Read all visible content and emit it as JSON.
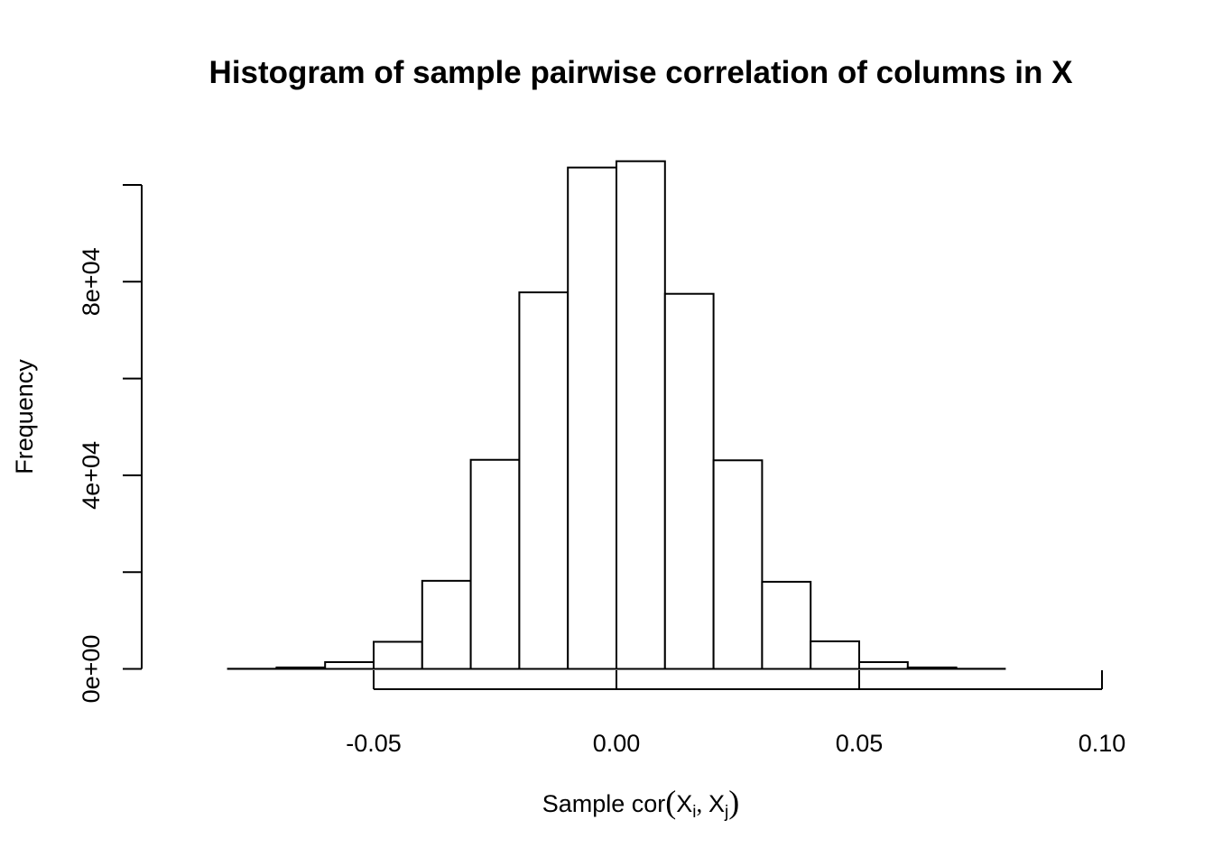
{
  "chart_data": {
    "type": "bar",
    "title": "Histogram of sample pairwise correlation of columns in X",
    "xlabel": {
      "prefix": "Sample cor",
      "var1": "X",
      "sub1": "i",
      "var2": "X",
      "sub2": "j"
    },
    "ylabel": "Frequency",
    "bin_width": 0.01,
    "bins": [
      {
        "start": -0.09,
        "end": -0.08,
        "count": 0
      },
      {
        "start": -0.08,
        "end": -0.07,
        "count": 30
      },
      {
        "start": -0.07,
        "end": -0.06,
        "count": 300
      },
      {
        "start": -0.06,
        "end": -0.05,
        "count": 1400
      },
      {
        "start": -0.05,
        "end": -0.04,
        "count": 5600
      },
      {
        "start": -0.04,
        "end": -0.03,
        "count": 18200
      },
      {
        "start": -0.03,
        "end": -0.02,
        "count": 43200
      },
      {
        "start": -0.02,
        "end": -0.01,
        "count": 77800
      },
      {
        "start": -0.01,
        "end": 0.0,
        "count": 103600
      },
      {
        "start": 0.0,
        "end": 0.01,
        "count": 104900
      },
      {
        "start": 0.01,
        "end": 0.02,
        "count": 77500
      },
      {
        "start": 0.02,
        "end": 0.03,
        "count": 43100
      },
      {
        "start": 0.03,
        "end": 0.04,
        "count": 18000
      },
      {
        "start": 0.04,
        "end": 0.05,
        "count": 5700
      },
      {
        "start": 0.05,
        "end": 0.06,
        "count": 1400
      },
      {
        "start": 0.06,
        "end": 0.07,
        "count": 300
      },
      {
        "start": 0.07,
        "end": 0.08,
        "count": 30
      },
      {
        "start": 0.08,
        "end": 0.09,
        "count": 0
      },
      {
        "start": 0.09,
        "end": 0.1,
        "count": 0
      }
    ],
    "xlim": [
      -0.09,
      0.1
    ],
    "ylim": [
      0,
      100000
    ],
    "x_ticks": [
      {
        "value": -0.05,
        "label": "-0.05"
      },
      {
        "value": 0.0,
        "label": "0.00"
      },
      {
        "value": 0.05,
        "label": "0.05"
      },
      {
        "value": 0.1,
        "label": "0.10"
      }
    ],
    "y_ticks": [
      {
        "value": 0,
        "label": "0e+00"
      },
      {
        "value": 20000,
        "label": ""
      },
      {
        "value": 40000,
        "label": "4e+04"
      },
      {
        "value": 60000,
        "label": ""
      },
      {
        "value": 80000,
        "label": "8e+04"
      },
      {
        "value": 100000,
        "label": ""
      }
    ],
    "grid": false,
    "legend": "none"
  }
}
